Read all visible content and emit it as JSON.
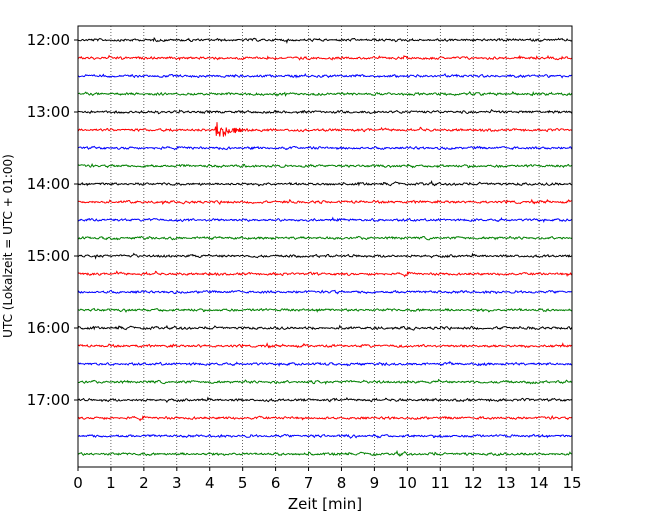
{
  "chart_data": {
    "type": "line",
    "title": "",
    "xlabel": "Zeit  [min]",
    "ylabel": "UTC (Lokalzeit = UTC + 01:00)",
    "xlim": [
      0,
      15
    ],
    "x_ticks": [
      "0",
      "1",
      "2",
      "3",
      "4",
      "5",
      "6",
      "7",
      "8",
      "9",
      "10",
      "11",
      "12",
      "13",
      "14",
      "15"
    ],
    "y_tick_labels": [
      "12:00",
      "13:00",
      "14:00",
      "15:00",
      "16:00",
      "17:00"
    ],
    "trace_interval_min": 15,
    "grid": "vertical dotted",
    "colors": [
      "#000000",
      "#ff0000",
      "#0000ff",
      "#008000"
    ],
    "traces": [
      {
        "start": "12:00",
        "color": "#000000"
      },
      {
        "start": "12:15",
        "color": "#ff0000"
      },
      {
        "start": "12:30",
        "color": "#0000ff"
      },
      {
        "start": "12:45",
        "color": "#008000"
      },
      {
        "start": "13:00",
        "color": "#000000"
      },
      {
        "start": "13:15",
        "color": "#ff0000",
        "event": {
          "t_min": 4.2,
          "amplitude": "high"
        }
      },
      {
        "start": "13:30",
        "color": "#0000ff"
      },
      {
        "start": "13:45",
        "color": "#008000"
      },
      {
        "start": "14:00",
        "color": "#000000"
      },
      {
        "start": "14:15",
        "color": "#ff0000"
      },
      {
        "start": "14:30",
        "color": "#0000ff"
      },
      {
        "start": "14:45",
        "color": "#008000"
      },
      {
        "start": "15:00",
        "color": "#000000"
      },
      {
        "start": "15:15",
        "color": "#ff0000"
      },
      {
        "start": "15:30",
        "color": "#0000ff"
      },
      {
        "start": "15:45",
        "color": "#008000"
      },
      {
        "start": "16:00",
        "color": "#000000"
      },
      {
        "start": "16:15",
        "color": "#ff0000"
      },
      {
        "start": "16:30",
        "color": "#0000ff"
      },
      {
        "start": "16:45",
        "color": "#008000"
      },
      {
        "start": "17:00",
        "color": "#000000"
      },
      {
        "start": "17:15",
        "color": "#ff0000"
      },
      {
        "start": "17:30",
        "color": "#0000ff"
      },
      {
        "start": "17:45",
        "color": "#008000"
      }
    ]
  }
}
